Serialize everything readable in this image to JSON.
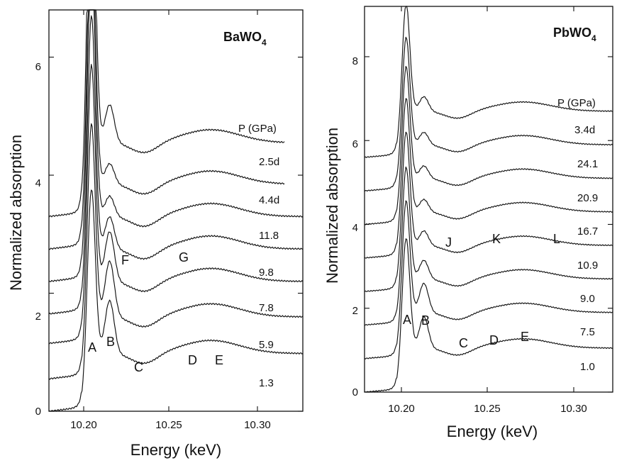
{
  "chart_data": [
    {
      "type": "line",
      "title": "BaWO4",
      "title_main": "BaWO",
      "title_sub": "4",
      "xlabel": "Energy (keV)",
      "ylabel": "Normalized absorption",
      "xlim": [
        10.19,
        10.328
      ],
      "ylim": [
        0,
        6.8
      ],
      "xticks": [
        10.2,
        10.25,
        10.3
      ],
      "xtick_labels": [
        "10.20",
        "10.25",
        "10.30"
      ],
      "yticks": [
        0,
        2,
        4,
        6
      ],
      "ytick_labels": [
        "0",
        "2",
        "4",
        "6"
      ],
      "grid": false,
      "legend_header": "P (GPa)",
      "series": [
        {
          "name": "1.3",
          "offset": 0.0,
          "peak": 2.95,
          "feat_b": 0.9,
          "plateau": 0.98
        },
        {
          "name": "5.9",
          "offset": 0.55,
          "peak": 3.45,
          "feat_b": 0.95,
          "plateau": 1.05
        },
        {
          "name": "7.8",
          "offset": 1.15,
          "peak": 3.85,
          "feat_b": 0.85,
          "plateau": 1.05
        },
        {
          "name": "9.8",
          "offset": 1.65,
          "peak": 4.15,
          "feat_b": 0.55,
          "plateau": 1.1
        },
        {
          "name": "11.8",
          "offset": 2.2,
          "peak": 4.65,
          "feat_b": 0.35,
          "plateau": 1.1
        },
        {
          "name": "4.4d",
          "offset": 2.75,
          "peak": 4.95,
          "feat_b": 0.35,
          "plateau": 1.1
        },
        {
          "name": "2.5d",
          "offset": 3.3,
          "peak": 5.65,
          "feat_b": 0.65,
          "plateau": 1.25
        }
      ],
      "annotations": [
        "A",
        "B",
        "C",
        "D",
        "E",
        "F",
        "G"
      ]
    },
    {
      "type": "line",
      "title": "PbWO4",
      "title_main": "PbWO",
      "title_sub": "4",
      "xlabel": "Energy (keV)",
      "ylabel": "Normalized absorption",
      "xlim": [
        10.19,
        10.328
      ],
      "ylim": [
        0,
        9.2
      ],
      "xticks": [
        10.2,
        10.25,
        10.3
      ],
      "xtick_labels": [
        "10.20",
        "10.25",
        "10.30"
      ],
      "yticks": [
        0,
        2,
        4,
        6,
        8
      ],
      "ytick_labels": [
        "0",
        "2",
        "4",
        "6",
        "8"
      ],
      "grid": false,
      "legend_header": "P (GPa)",
      "series": [
        {
          "name": "1.0",
          "offset": 0.0,
          "peak": 2.8,
          "feat_b": 0.75,
          "plateau": 1.05
        },
        {
          "name": "7.5",
          "offset": 0.8,
          "peak": 2.85,
          "feat_b": 0.7,
          "plateau": 1.1
        },
        {
          "name": "9.0",
          "offset": 1.6,
          "peak": 2.85,
          "feat_b": 0.45,
          "plateau": 1.1
        },
        {
          "name": "10.9",
          "offset": 2.4,
          "peak": 2.9,
          "feat_b": 0.35,
          "plateau": 1.1
        },
        {
          "name": "16.7",
          "offset": 3.2,
          "peak": 2.9,
          "feat_b": 0.3,
          "plateau": 1.1
        },
        {
          "name": "20.9",
          "offset": 4.0,
          "peak": 2.85,
          "feat_b": 0.3,
          "plateau": 1.1
        },
        {
          "name": "24.1",
          "offset": 4.8,
          "peak": 2.75,
          "feat_b": 0.3,
          "plateau": 1.1
        },
        {
          "name": "3.4d",
          "offset": 5.6,
          "peak": 2.75,
          "feat_b": 0.35,
          "plateau": 1.1
        }
      ],
      "annotations": [
        "A",
        "B",
        "C",
        "D",
        "E",
        "J",
        "K",
        "L"
      ]
    }
  ]
}
